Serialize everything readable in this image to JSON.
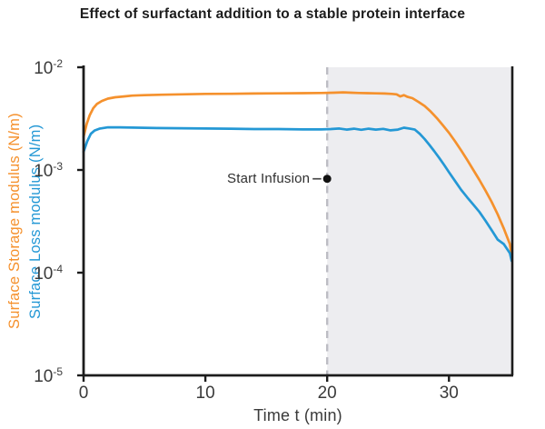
{
  "title": "Effect of surfactant addition to a stable protein interface",
  "axes": {
    "x_label": "Time t (min)",
    "x_ticks": [
      "0",
      "10",
      "20",
      "30"
    ],
    "y_tick_base": "10",
    "y_tick_exponents": [
      "-2",
      "-3",
      "-4",
      "-5"
    ],
    "y_axis_labels": [
      {
        "text": "Surface Storage modulus (N/m)",
        "color": "#F5912D"
      },
      {
        "text": "Surface Loss modulus (N/m)",
        "color": "#2498D5"
      }
    ]
  },
  "annotation": {
    "label": "Start Infusion"
  },
  "colors": {
    "storage_orange": "#F5912D",
    "loss_blue": "#2498D5",
    "shaded_region": "#EDEDF0",
    "dashed_line": "#BDBDC4",
    "axis": "#1C1C1C",
    "tick_text": "#3A3A3A",
    "title_text": "#1C1C1C",
    "annotation_text": "#2F2F2F",
    "annotation_dot": "#111111"
  },
  "chart_data": {
    "type": "line",
    "title": "Effect of surfactant addition to a stable protein interface",
    "xlabel": "Time t (min)",
    "ylabel": "Surface Storage modulus (N/m) / Surface Loss modulus (N/m)",
    "yscale": "log",
    "xlim": [
      0,
      35.2
    ],
    "ylim": [
      1e-05,
      0.01
    ],
    "x_ticks": [
      0,
      10,
      20,
      30
    ],
    "y_ticks": [
      0.01,
      0.001,
      0.0001,
      1e-05
    ],
    "grid": false,
    "legend_position": "colored y-axis labels serve as legend",
    "shaded_region": {
      "x_from": 20,
      "x_to": 35.2
    },
    "vline": {
      "x": 20,
      "style": "dashed"
    },
    "annotation": {
      "label": "Start Infusion",
      "x": 20,
      "y": 0.00082
    },
    "series": [
      {
        "name": "Surface Storage modulus (N/m)",
        "color": "#F5912D",
        "points": [
          [
            0,
            0.0021
          ],
          [
            0.25,
            0.0028
          ],
          [
            0.5,
            0.0034
          ],
          [
            0.8,
            0.004
          ],
          [
            1.1,
            0.0044
          ],
          [
            1.5,
            0.0047
          ],
          [
            2,
            0.00495
          ],
          [
            2.6,
            0.0051
          ],
          [
            3.3,
            0.0052
          ],
          [
            4,
            0.0053
          ],
          [
            5,
            0.00535
          ],
          [
            6.5,
            0.0054
          ],
          [
            8,
            0.00545
          ],
          [
            10,
            0.0055
          ],
          [
            12,
            0.00552
          ],
          [
            14,
            0.00555
          ],
          [
            16,
            0.00557
          ],
          [
            18,
            0.0056
          ],
          [
            19.5,
            0.00562
          ],
          [
            20.5,
            0.00565
          ],
          [
            21.3,
            0.0057
          ],
          [
            22,
            0.00565
          ],
          [
            22.6,
            0.00562
          ],
          [
            23.3,
            0.0056
          ],
          [
            24,
            0.00557
          ],
          [
            24.7,
            0.00555
          ],
          [
            25.3,
            0.0055
          ],
          [
            25.7,
            0.00545
          ],
          [
            26,
            0.0052
          ],
          [
            26.3,
            0.00535
          ],
          [
            26.6,
            0.00515
          ],
          [
            27,
            0.005
          ],
          [
            27.5,
            0.0046
          ],
          [
            28,
            0.0042
          ],
          [
            28.5,
            0.0037
          ],
          [
            29,
            0.0032
          ],
          [
            29.5,
            0.00272
          ],
          [
            30,
            0.0023
          ],
          [
            30.5,
            0.0019
          ],
          [
            31,
            0.00155
          ],
          [
            31.5,
            0.00125
          ],
          [
            32,
            0.001
          ],
          [
            32.5,
            0.0008
          ],
          [
            33,
            0.00063
          ],
          [
            33.5,
            0.00049
          ],
          [
            34,
            0.00037
          ],
          [
            34.5,
            0.00027
          ],
          [
            35,
            0.00019
          ],
          [
            35.15,
            0.000145
          ]
        ]
      },
      {
        "name": "Surface Loss modulus (N/m)",
        "color": "#2498D5",
        "points": [
          [
            0,
            0.0015
          ],
          [
            0.3,
            0.0019
          ],
          [
            0.6,
            0.00225
          ],
          [
            0.9,
            0.00242
          ],
          [
            1.3,
            0.00252
          ],
          [
            2,
            0.0026
          ],
          [
            3,
            0.0026
          ],
          [
            4.5,
            0.00258
          ],
          [
            6,
            0.00256
          ],
          [
            8,
            0.00255
          ],
          [
            10,
            0.00253
          ],
          [
            12,
            0.00252
          ],
          [
            14,
            0.0025
          ],
          [
            16,
            0.0025
          ],
          [
            18,
            0.00248
          ],
          [
            19.5,
            0.00248
          ],
          [
            20.3,
            0.0025
          ],
          [
            21,
            0.00253
          ],
          [
            21.6,
            0.00247
          ],
          [
            22.2,
            0.00252
          ],
          [
            22.8,
            0.00246
          ],
          [
            23.4,
            0.00252
          ],
          [
            24,
            0.00247
          ],
          [
            24.6,
            0.00251
          ],
          [
            25.2,
            0.00243
          ],
          [
            25.8,
            0.00247
          ],
          [
            26.3,
            0.00258
          ],
          [
            26.8,
            0.00252
          ],
          [
            27.2,
            0.00247
          ],
          [
            27.6,
            0.00225
          ],
          [
            28,
            0.002
          ],
          [
            28.4,
            0.00175
          ],
          [
            28.8,
            0.00152
          ],
          [
            29.2,
            0.00131
          ],
          [
            29.6,
            0.00112
          ],
          [
            30,
            0.00095
          ],
          [
            30.5,
            0.00078
          ],
          [
            31,
            0.00064
          ],
          [
            31.5,
            0.00054
          ],
          [
            32,
            0.00046
          ],
          [
            32.5,
            0.00039
          ],
          [
            33,
            0.00032
          ],
          [
            33.5,
            0.00026
          ],
          [
            34,
            0.00021
          ],
          [
            34.5,
            0.00019
          ],
          [
            35,
            0.000155
          ],
          [
            35.15,
            0.00013
          ]
        ]
      }
    ]
  }
}
